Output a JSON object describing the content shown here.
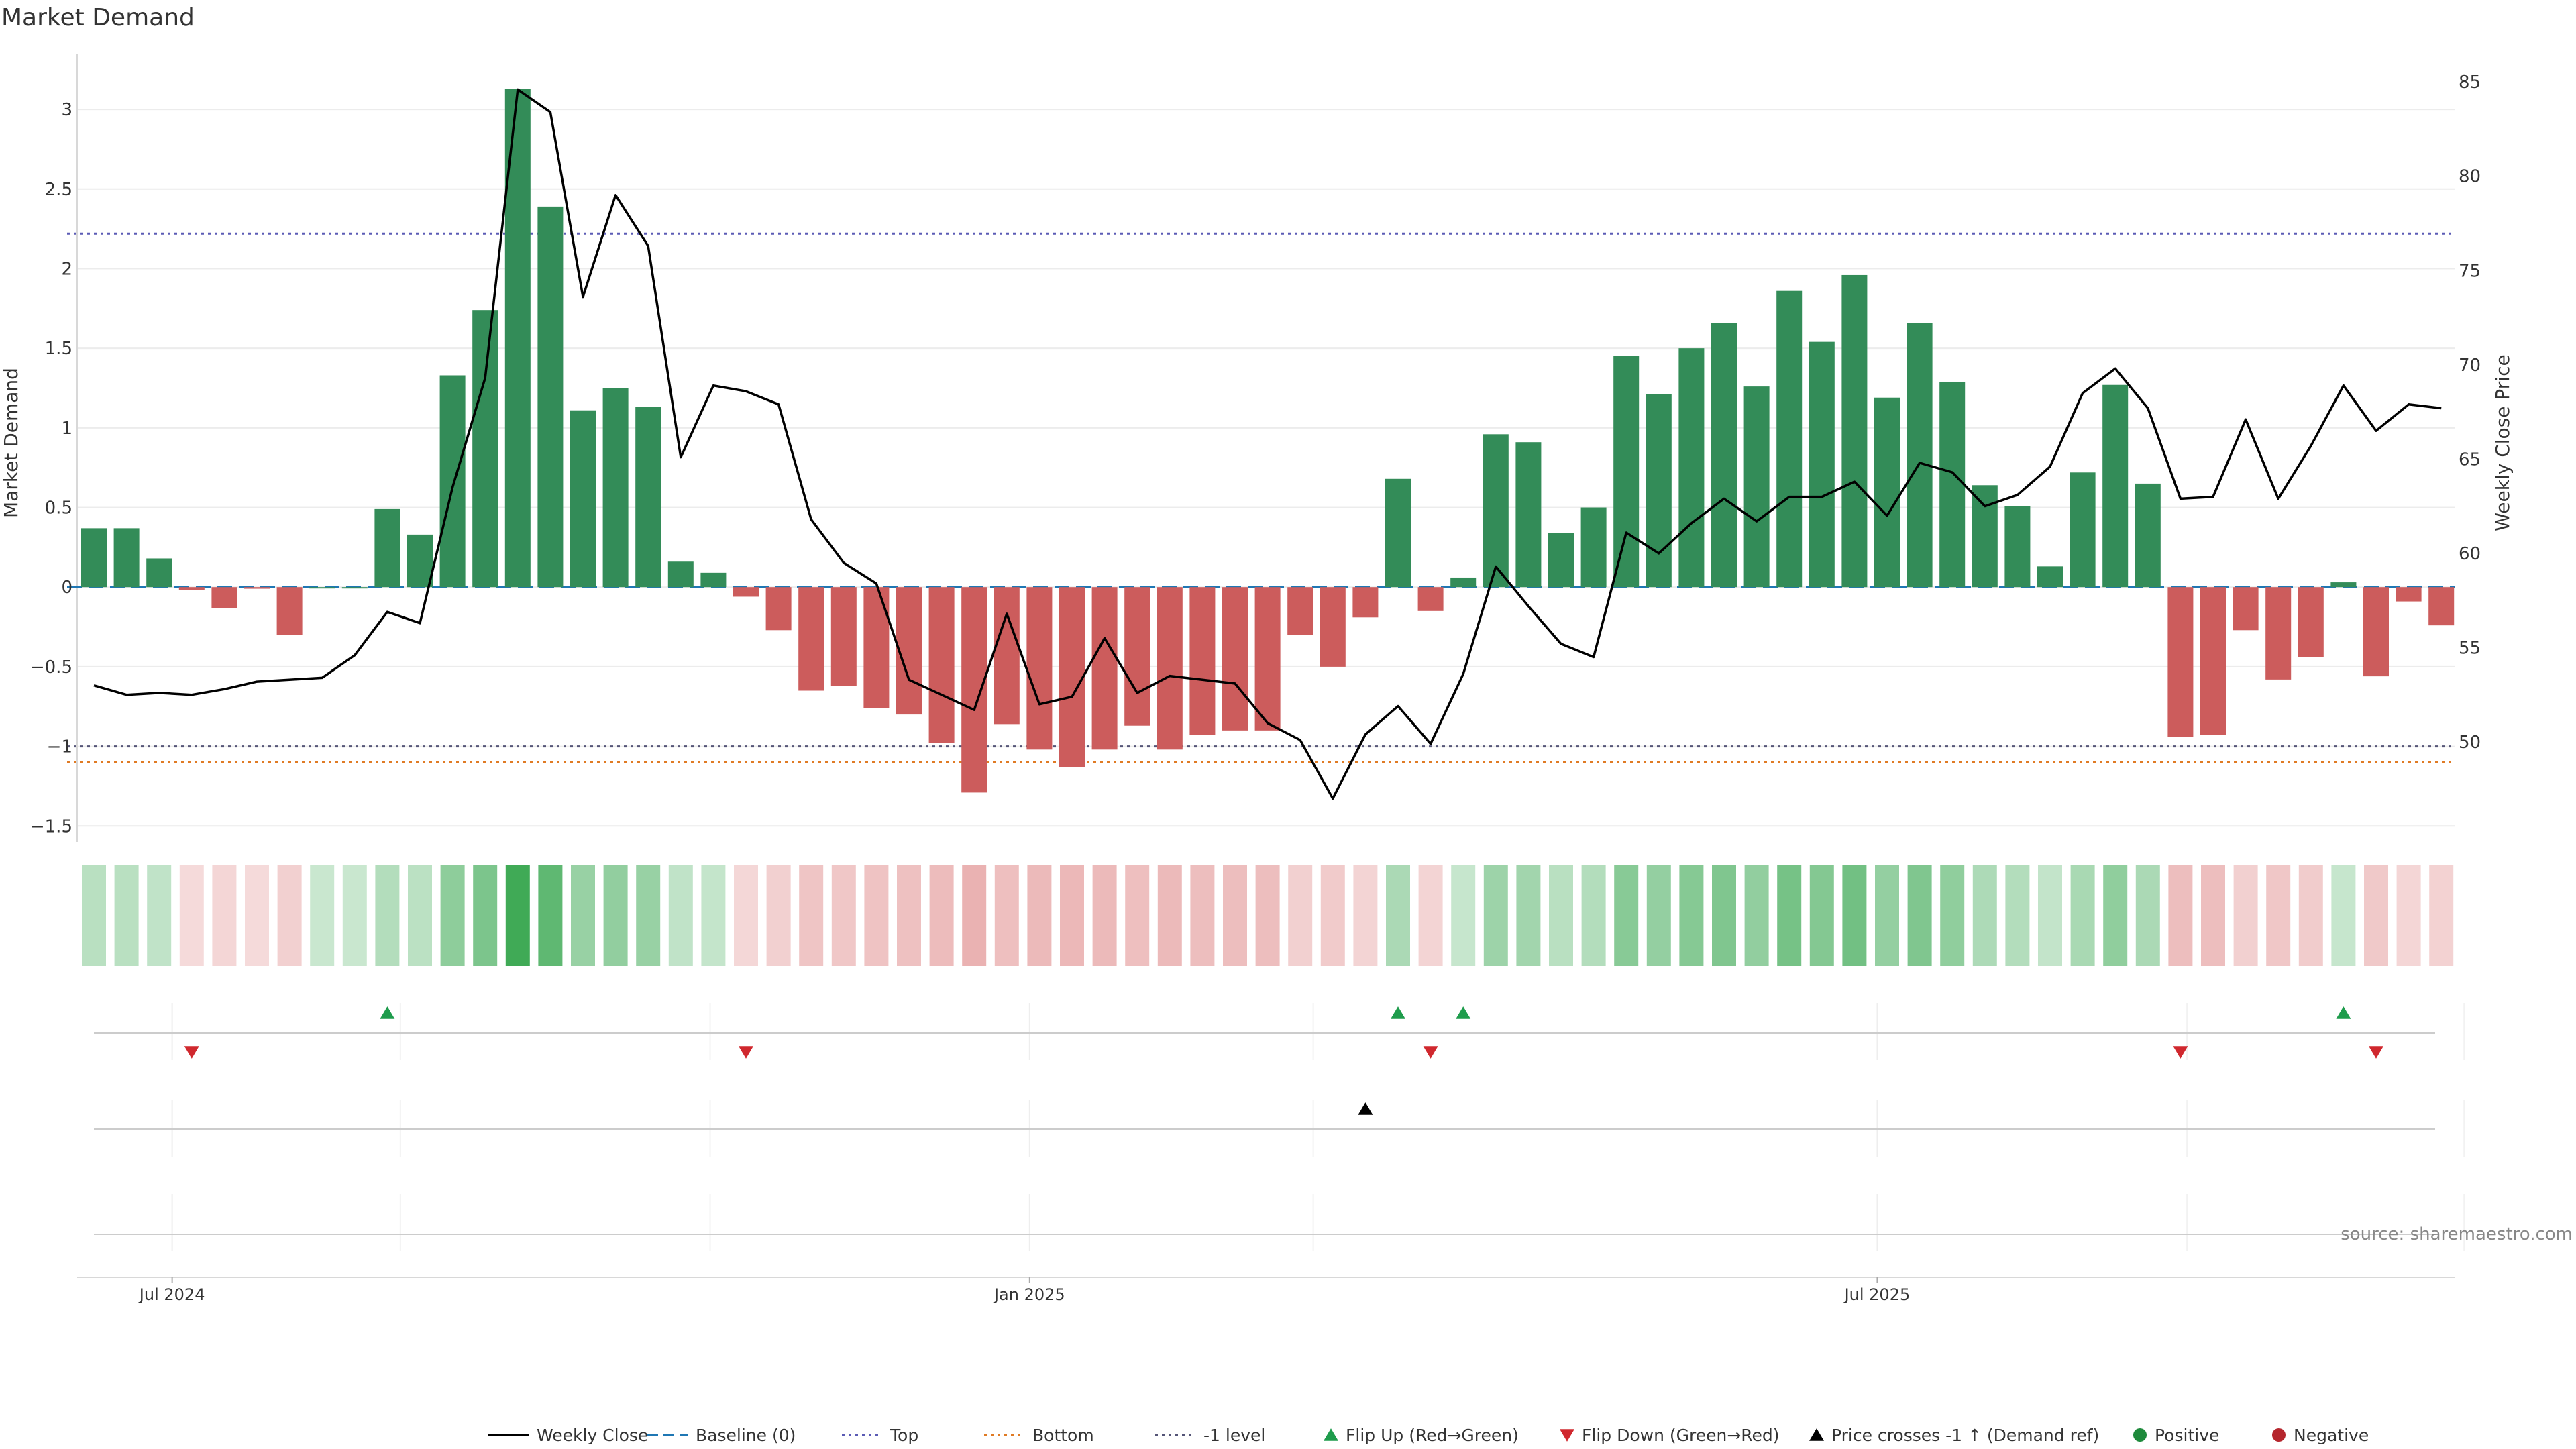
{
  "chart_data": {
    "type": "bar",
    "title": "Market Demand",
    "ylabel": "Market Demand",
    "y2label": "Weekly Close Price",
    "ylim": [
      -1.6,
      3.35
    ],
    "y_ticks": [
      3,
      2.5,
      2,
      1.5,
      1,
      0.5,
      0,
      -0.5,
      -1,
      -1.5
    ],
    "y_tick_labels": [
      "3",
      "2.5",
      "2",
      "1.5",
      "1",
      "0.5",
      "0",
      "−0.5",
      "−1",
      "−1.5"
    ],
    "y2lim": [
      44.7,
      86.5
    ],
    "y2_ticks": [
      85,
      80,
      75,
      70,
      65,
      60,
      55,
      50
    ],
    "x_tick_labels": [
      {
        "label": "Jul 2024",
        "week": 2.4
      },
      {
        "label": "Jan 2025",
        "week": 28.7
      },
      {
        "label": "Jul 2025",
        "week": 54.7
      }
    ],
    "reference_lines": {
      "top": 2.22,
      "bottom": -1.1,
      "minus_one": -1.0,
      "baseline": 0
    },
    "series": [
      {
        "name": "Market Demand",
        "kind": "bar",
        "values": [
          0.37,
          0.37,
          0.18,
          -0.02,
          -0.13,
          -0.01,
          -0.3,
          0.0,
          0.0,
          0.49,
          0.33,
          1.33,
          1.74,
          3.13,
          2.39,
          1.11,
          1.25,
          1.13,
          0.16,
          0.09,
          -0.06,
          -0.27,
          -0.65,
          -0.62,
          -0.76,
          -0.8,
          -0.98,
          -1.29,
          -0.86,
          -1.02,
          -1.13,
          -1.02,
          -0.87,
          -1.02,
          -0.93,
          -0.9,
          -0.9,
          -0.3,
          -0.5,
          -0.19,
          0.68,
          -0.15,
          0.06,
          0.96,
          0.91,
          0.34,
          0.5,
          1.45,
          1.21,
          1.5,
          1.66,
          1.26,
          1.86,
          1.54,
          1.96,
          1.19,
          1.66,
          1.29,
          0.64,
          0.51,
          0.13,
          0.72,
          1.27,
          0.65,
          -0.94,
          -0.93,
          -0.27,
          -0.58,
          -0.44,
          0.03,
          -0.56,
          -0.09,
          -0.24
        ]
      },
      {
        "name": "Weekly Close",
        "kind": "line",
        "values": [
          53.0,
          52.5,
          52.6,
          52.5,
          52.8,
          53.2,
          53.3,
          53.4,
          54.6,
          56.9,
          56.3,
          63.5,
          69.3,
          84.6,
          83.4,
          73.6,
          79.0,
          76.3,
          65.1,
          68.9,
          68.6,
          67.9,
          61.8,
          59.5,
          58.4,
          53.3,
          52.5,
          51.7,
          56.8,
          52.0,
          52.4,
          55.5,
          52.6,
          53.5,
          53.3,
          53.1,
          51.0,
          50.1,
          47.0,
          50.4,
          51.9,
          49.9,
          53.6,
          59.3,
          57.2,
          55.2,
          54.5,
          61.1,
          60.0,
          61.6,
          62.9,
          61.7,
          63.0,
          63.0,
          63.8,
          62.0,
          64.8,
          64.3,
          62.5,
          63.1,
          64.6,
          68.5,
          69.8,
          67.7,
          62.9,
          63.0,
          67.1,
          62.9,
          65.7,
          68.9,
          66.5,
          67.9,
          67.7
        ]
      }
    ],
    "flip_up_weeks": [
      9,
      40,
      42,
      69
    ],
    "flip_down_weeks": [
      3,
      20,
      41,
      64,
      70
    ],
    "price_cross_weeks": [
      39
    ],
    "legend": {
      "position": "bottom-center",
      "items": [
        {
          "label": "Weekly Close",
          "kind": "line",
          "color": "#000000"
        },
        {
          "label": "Baseline (0)",
          "kind": "dashed-line",
          "color": "#1f77b4"
        },
        {
          "label": "Top",
          "kind": "dotted-line",
          "color": "#5b5bb5"
        },
        {
          "label": "Bottom",
          "kind": "dotted-line",
          "color": "#e07b24"
        },
        {
          "label": "-1 level",
          "kind": "dotted-line",
          "color": "#555577"
        },
        {
          "label": "Flip Up (Red→Green)",
          "kind": "triangle-up",
          "color": "#1e9c4c"
        },
        {
          "label": "Flip Down (Green→Red)",
          "kind": "triangle-down",
          "color": "#d0282e"
        },
        {
          "label": "Price crosses -1 ↑ (Demand ref)",
          "kind": "triangle-up",
          "color": "#000000"
        },
        {
          "label": "Positive",
          "kind": "dot",
          "color": "#1e8a3c"
        },
        {
          "label": "Negative",
          "kind": "dot",
          "color": "#b5262d"
        }
      ]
    },
    "source": "source: sharemaestro.com"
  },
  "colors": {
    "positive_bar": "#338c58",
    "negative_bar": "#cc5c5c",
    "heat_positive": "#3ca853",
    "heat_negative": "#cc4444",
    "price_line": "#000000",
    "grid": "#ececec",
    "axis": "#d8d8d8"
  }
}
